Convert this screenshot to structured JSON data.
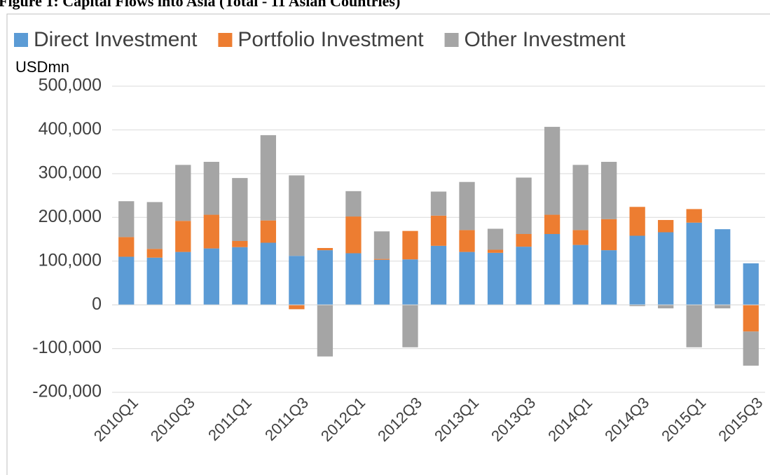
{
  "chart_data": {
    "type": "stacked_bar",
    "title": "Figure 1: Capital Flows into Asia (Total - 11 Asian Countries)",
    "y_label": "USDmn",
    "categories": [
      "2010Q1",
      null,
      "2010Q3",
      null,
      "2011Q1",
      null,
      "2011Q3",
      null,
      "2012Q1",
      null,
      "2012Q3",
      null,
      "2013Q1",
      null,
      "2013Q3",
      null,
      "2014Q1",
      null,
      "2014Q3",
      null,
      "2015Q1",
      null,
      "2015Q3"
    ],
    "series": [
      {
        "name": "Direct Investment",
        "color": "#5b9bd5",
        "values": [
          110000,
          108000,
          121000,
          129000,
          132000,
          142000,
          112000,
          125000,
          118000,
          103000,
          104000,
          135000,
          121000,
          119000,
          133000,
          162000,
          137000,
          125000,
          158000,
          166000,
          188000,
          173000,
          95000
        ]
      },
      {
        "name": "Portfolio Investment",
        "color": "#ed7d31",
        "values": [
          45000,
          20000,
          71000,
          77000,
          14000,
          51000,
          -10000,
          5000,
          84000,
          2000,
          65000,
          69000,
          50000,
          7000,
          29000,
          44000,
          34000,
          71000,
          66000,
          28000,
          31000,
          0,
          -61000
        ]
      },
      {
        "name": "Other Investment",
        "color": "#a5a5a5",
        "values": [
          82000,
          107000,
          128000,
          121000,
          144000,
          195000,
          184000,
          -118000,
          58000,
          63000,
          -97000,
          55000,
          110000,
          48000,
          129000,
          201000,
          149000,
          131000,
          -3000,
          -8000,
          -97000,
          -8000,
          -78000
        ]
      }
    ],
    "ylim": [
      -200000,
      500000
    ],
    "yticks": [
      {
        "value": -200000,
        "label": "-200,000"
      },
      {
        "value": -100000,
        "label": "-100,000"
      },
      0,
      {
        "value": 100000,
        "label": "100,000"
      },
      {
        "value": 200000,
        "label": "200,000"
      },
      {
        "value": 300000,
        "label": "300,000"
      },
      {
        "value": 400000,
        "label": "400,000"
      },
      {
        "value": 500000,
        "label": "500,000"
      }
    ],
    "grid": true,
    "legend": "top"
  }
}
